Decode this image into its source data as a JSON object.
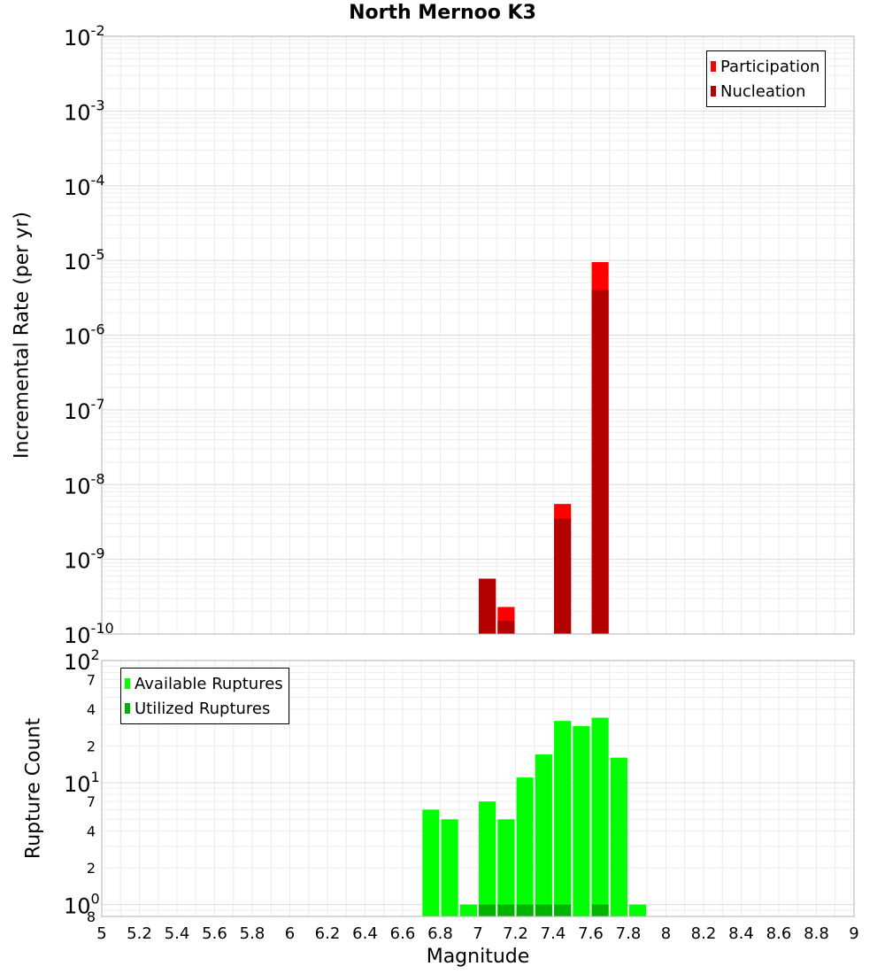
{
  "chart_data": [
    {
      "type": "bar",
      "title": "North Mernoo K3",
      "xlabel": "",
      "ylabel": "Incremental Rate (per yr)",
      "xlim": [
        5,
        9
      ],
      "ylim": [
        1e-10,
        0.01
      ],
      "yscale": "log",
      "y_tick_labels": [
        {
          "base": "10",
          "exp": "-10"
        },
        {
          "base": "10",
          "exp": "-9"
        },
        {
          "base": "10",
          "exp": "-8"
        },
        {
          "base": "10",
          "exp": "-7"
        },
        {
          "base": "10",
          "exp": "-6"
        },
        {
          "base": "10",
          "exp": "-5"
        },
        {
          "base": "10",
          "exp": "-4"
        },
        {
          "base": "10",
          "exp": "-3"
        },
        {
          "base": "10",
          "exp": "-2"
        }
      ],
      "legend": {
        "position": "top-right",
        "entries": [
          "Participation",
          "Nucleation"
        ]
      },
      "series": [
        {
          "name": "Participation",
          "color": "#ff0000",
          "x": [
            7.05,
            7.15,
            7.45,
            7.65
          ],
          "values": [
            5.5e-10,
            2.3e-10,
            5.5e-09,
            9.5e-06
          ]
        },
        {
          "name": "Nucleation",
          "color": "#b30000",
          "x": [
            7.05,
            7.15,
            7.45,
            7.65
          ],
          "values": [
            5.5e-10,
            1.5e-10,
            3.5e-09,
            4e-06
          ]
        }
      ]
    },
    {
      "type": "bar",
      "title": "",
      "xlabel": "Magnitude",
      "ylabel": "Rupture Count",
      "xlim": [
        5,
        9
      ],
      "ylim": [
        0.8,
        100
      ],
      "yscale": "log",
      "x_ticks": [
        "5",
        "5.2",
        "5.4",
        "5.6",
        "5.8",
        "6",
        "6.2",
        "6.4",
        "6.6",
        "6.8",
        "7",
        "7.2",
        "7.4",
        "7.6",
        "7.8",
        "8",
        "8.2",
        "8.4",
        "8.6",
        "8.8",
        "9"
      ],
      "y_minor_labels": [
        "7",
        "4",
        "2",
        "7",
        "4",
        "2",
        "8"
      ],
      "y_major_labels": [
        {
          "base": "10",
          "exp": "2"
        },
        {
          "base": "10",
          "exp": "1"
        },
        {
          "base": "10",
          "exp": "0"
        }
      ],
      "legend": {
        "position": "top-left",
        "entries": [
          "Available Ruptures",
          "Utilized Ruptures"
        ]
      },
      "series": [
        {
          "name": "Available Ruptures",
          "color": "#00ff00",
          "x": [
            6.75,
            6.85,
            6.95,
            7.05,
            7.15,
            7.25,
            7.35,
            7.45,
            7.55,
            7.65,
            7.75,
            7.85
          ],
          "values": [
            6,
            5,
            1,
            7,
            5,
            11,
            17,
            32,
            29,
            34,
            16,
            1
          ]
        },
        {
          "name": "Utilized Ruptures",
          "color": "#00b300",
          "x": [
            7.05,
            7.15,
            7.25,
            7.35,
            7.45,
            7.65
          ],
          "values": [
            1,
            1,
            1,
            1,
            1,
            1
          ]
        }
      ]
    }
  ]
}
